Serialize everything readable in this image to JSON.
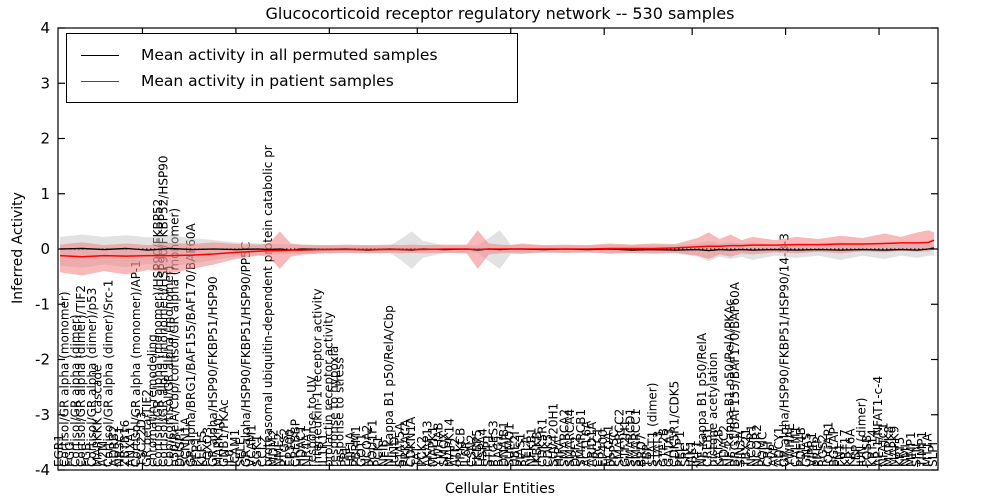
{
  "title": "Glucocorticoid receptor regulatory network -- 530 samples",
  "legend": {
    "entries": [
      {
        "label": "Mean activity in all permuted samples",
        "color": "#000000"
      },
      {
        "label": "Mean activity in patient samples",
        "color": "#ff0000"
      }
    ]
  },
  "axes": {
    "ylabel": "Inferred Activity",
    "xlabel": "Cellular Entities",
    "yticks": [
      4,
      3,
      2,
      1,
      0,
      -1,
      -2,
      -3,
      -4
    ],
    "ylim": [
      -4,
      4
    ]
  },
  "colors": {
    "patient_line": "#ff0000",
    "permuted_line": "#000000",
    "patient_band": "#f08080",
    "permuted_band": "#bfbfbf",
    "axis": "#000000"
  },
  "chart_data": {
    "type": "line",
    "title": "Glucocorticoid receptor regulatory network -- 530 samples",
    "xlabel": "Cellular Entities",
    "ylabel": "Inferred Activity",
    "ylim": [
      -4,
      4
    ],
    "legend_position": "upper left",
    "grid": false,
    "top_tick_indices": [
      15,
      32,
      49,
      65,
      82,
      99,
      115,
      132,
      149
    ],
    "entities": [
      "EGR1",
      "Cortisol/GR alpha (monomer)",
      "FGG",
      "Cortisol/GR alpha (dimer)",
      "Cortisol/GR alpha (dimer)/TIF2",
      "FGB",
      "Cortisol/GR alpha (dimer)/p53",
      "MAPKKK cascade",
      "A2M",
      "Cortisol/GR alpha (dimer)/Src-1",
      "ADRB2",
      "NR3C1",
      "ZBTB16",
      "ANXA1",
      "Cortisol/GR alpha (monomer)/AP-1",
      "TSC22D3",
      "GR beta/TIF2",
      "chromatin remodeling",
      "Cortisol/GR alpha (monomer)/HSP90/FKBP52",
      "Cortisol/GR alpha (monomer)/HSP90/FKBP52/HSP90",
      "Cbp/cortisol/GR alpha (monomer)",
      "p50/RelA/Cbp/cortisol/GR alpha (monomer)",
      "DUSP1",
      "SCNN1A",
      "GR alpha/BRG1/BAF155/BAF170/BAF60A",
      "PER1",
      "KLF15",
      "FOXO3",
      "GR alpha/HSP90/FKBP51/HSP90",
      "MAPK10",
      "GNB1/PKAc",
      "IL6",
      "ICAM1",
      "SELE",
      "GR alpha/HSP90/FKBP51/HSP90/PP5C",
      "VCAM1",
      "SGK1",
      "CCL2",
      "proteasomal ubiquitin-dependent protein catabolic pr",
      "MDM2",
      "NME2",
      "PTGS2",
      "EP300",
      "CREBBP",
      "HDAC1",
      "NR4A1",
      "response to UV",
      "interleukin-1 receptor activity",
      "IL1R1",
      "prolactin receptor activity",
      "response to hypoxia",
      "response to stress",
      "PRL",
      "HIF1A",
      "PBRM1",
      "GOT1",
      "NCOA2",
      "POU1F1",
      "PCK1",
      "NFIB",
      "NF-kappa B1 p50/RelA/Cbp",
      "JUND",
      "STAT5A",
      "PRKACA",
      "CDKN1A",
      "TAT",
      "PCK2",
      "AKAP13",
      "MAPK1",
      "YWHAB",
      "SMOX",
      "MAPK14",
      "ATF2",
      "PRKCB",
      "IL6R",
      "CSN2",
      "FKBP5",
      "HSPA4",
      "STIP1",
      "PTGES3",
      "BAG1",
      "DNAJB1",
      "SUMO1",
      "UBE2I",
      "PIAS1",
      "RELA",
      "NFKB1",
      "IKBKB",
      "CDK5R1",
      "CDK5",
      "SUV420H1",
      "HIRA",
      "SMARCA2",
      "SMARCA4",
      "DPF2",
      "SMARCB1",
      "ACTL6A",
      "ARID1A",
      "ERCC1",
      "EP400",
      "NCOA1",
      "PPP5C",
      "SMARCC2",
      "GTF2H1",
      "SMARCD1",
      "SMARCC1",
      "BRD7",
      "TBP",
      "STAT1 (dimer)",
      "STAT3",
      "GTF2B",
      "GATA3",
      "CDK5R1/CDK5",
      "PELP1",
      "SRC",
      "JAK1",
      "IRF1",
      "NF-kappa B1 p50/RelA",
      "CREB1",
      "histone acetylation",
      "KAT2B",
      "HDAC2",
      "NF-kappa B1 p50/RelA/PKAc",
      "BRG1/BAF155/BAF170/BAF60A",
      "SIN3A",
      "TBX21",
      "NCOR1",
      "NCOR2",
      "POMC",
      "CRH",
      "AVP",
      "ADCY1",
      "GR alpha/HSP90/FKBP51/HSP90/14-3-3",
      "YWHAE",
      "CALM1",
      "PDE4B",
      "GNAS",
      "VIPR1",
      "PREP",
      "RGS2",
      "IQGAP1",
      "BGLAP",
      "FN1",
      "KRT17",
      "KRT6A",
      "LBP",
      "JUN (dimer)",
      "FOSB",
      "KRT14",
      "AP-1/NFAT1-c-4",
      "NFATC1",
      "MAPK8",
      "MAPK9",
      "KRT5",
      "NMI",
      "MMP1",
      "SFN",
      "TIMP1",
      "MT1A",
      "SLPI"
    ],
    "sample_x": [
      0,
      4,
      8,
      12,
      16,
      20,
      24,
      28,
      32,
      36,
      38,
      40,
      42,
      44,
      48,
      52,
      56,
      60,
      62,
      64,
      66,
      70,
      74,
      76,
      78,
      80,
      82,
      84,
      88,
      92,
      96,
      100,
      104,
      108,
      112,
      116,
      118,
      120,
      122,
      124,
      126,
      130,
      134,
      138,
      142,
      146,
      150,
      153,
      156,
      158,
      159
    ],
    "series": [
      {
        "name": "permuted_band_hi",
        "values": [
          0.22,
          0.26,
          0.22,
          0.25,
          0.21,
          0.25,
          0.2,
          0.16,
          0.12,
          0.1,
          0.09,
          0.09,
          0.08,
          0.08,
          0.07,
          0.06,
          0.07,
          0.06,
          0.18,
          0.32,
          0.15,
          0.06,
          0.07,
          0.06,
          0.2,
          0.34,
          0.08,
          0.08,
          0.06,
          0.07,
          0.06,
          0.08,
          0.07,
          0.08,
          0.07,
          0.1,
          0.14,
          0.1,
          0.12,
          0.1,
          0.12,
          0.08,
          0.1,
          0.08,
          0.12,
          0.08,
          0.12,
          0.08,
          0.1,
          0.08,
          0.08
        ]
      },
      {
        "name": "permuted_band_lo",
        "values": [
          -0.3,
          -0.34,
          -0.28,
          -0.33,
          -0.27,
          -0.32,
          -0.26,
          -0.2,
          -0.14,
          -0.11,
          -0.1,
          -0.1,
          -0.09,
          -0.09,
          -0.08,
          -0.07,
          -0.08,
          -0.07,
          -0.2,
          -0.36,
          -0.16,
          -0.07,
          -0.08,
          -0.07,
          -0.22,
          -0.36,
          -0.09,
          -0.09,
          -0.07,
          -0.08,
          -0.07,
          -0.09,
          -0.08,
          -0.09,
          -0.08,
          -0.14,
          -0.22,
          -0.14,
          -0.18,
          -0.14,
          -0.2,
          -0.12,
          -0.16,
          -0.12,
          -0.2,
          -0.12,
          -0.18,
          -0.12,
          -0.16,
          -0.12,
          -0.12
        ]
      },
      {
        "name": "patient_band_hi",
        "values": [
          0.08,
          0.12,
          0.07,
          0.1,
          0.07,
          0.11,
          0.09,
          0.12,
          0.09,
          0.08,
          0.1,
          0.32,
          0.1,
          0.08,
          0.07,
          0.08,
          0.07,
          0.08,
          0.07,
          0.08,
          0.07,
          0.08,
          0.08,
          0.34,
          0.1,
          0.08,
          0.07,
          0.1,
          0.07,
          0.08,
          0.07,
          0.1,
          0.08,
          0.1,
          0.09,
          0.2,
          0.3,
          0.18,
          0.26,
          0.16,
          0.22,
          0.16,
          0.22,
          0.18,
          0.24,
          0.2,
          0.28,
          0.22,
          0.3,
          0.34,
          0.3
        ]
      },
      {
        "name": "patient_band_lo",
        "values": [
          -0.42,
          -0.48,
          -0.4,
          -0.46,
          -0.38,
          -0.44,
          -0.36,
          -0.28,
          -0.18,
          -0.12,
          -0.14,
          -0.36,
          -0.14,
          -0.1,
          -0.08,
          -0.07,
          -0.08,
          -0.07,
          -0.08,
          -0.07,
          -0.08,
          -0.07,
          -0.08,
          -0.36,
          -0.1,
          -0.08,
          -0.07,
          -0.08,
          -0.06,
          -0.07,
          -0.06,
          -0.08,
          -0.07,
          -0.08,
          -0.07,
          -0.12,
          -0.18,
          -0.1,
          -0.14,
          -0.08,
          -0.1,
          -0.06,
          -0.08,
          -0.05,
          -0.08,
          -0.04,
          -0.06,
          -0.03,
          -0.05,
          -0.04,
          0.0
        ]
      },
      {
        "name": "Mean activity in patient samples",
        "values": [
          -0.12,
          -0.14,
          -0.12,
          -0.13,
          -0.12,
          -0.12,
          -0.11,
          -0.09,
          -0.06,
          -0.04,
          -0.03,
          -0.03,
          -0.02,
          -0.02,
          -0.01,
          -0.01,
          -0.01,
          -0.01,
          -0.01,
          -0.01,
          -0.01,
          0.0,
          0.0,
          -0.01,
          0.0,
          0.0,
          0.0,
          0.0,
          0.0,
          0.0,
          0.0,
          0.01,
          0.01,
          0.01,
          0.02,
          0.04,
          0.05,
          0.05,
          0.06,
          0.06,
          0.07,
          0.07,
          0.08,
          0.08,
          0.09,
          0.09,
          0.1,
          0.11,
          0.11,
          0.12,
          0.16
        ]
      },
      {
        "name": "Mean activity in all permuted samples",
        "values": [
          0.0,
          0.01,
          -0.01,
          0.01,
          -0.02,
          0.01,
          -0.01,
          0.0,
          -0.01,
          0.0,
          -0.01,
          0.0,
          -0.02,
          0.0,
          -0.01,
          0.0,
          -0.02,
          0.0,
          -0.01,
          -0.02,
          0.0,
          -0.01,
          0.0,
          -0.02,
          0.0,
          -0.01,
          0.0,
          0.0,
          -0.01,
          0.0,
          -0.01,
          0.0,
          -0.02,
          -0.01,
          -0.02,
          -0.01,
          -0.03,
          -0.01,
          -0.02,
          -0.01,
          -0.02,
          -0.01,
          -0.02,
          -0.01,
          -0.02,
          -0.01,
          -0.02,
          -0.01,
          -0.02,
          0.0,
          0.02
        ]
      }
    ]
  }
}
